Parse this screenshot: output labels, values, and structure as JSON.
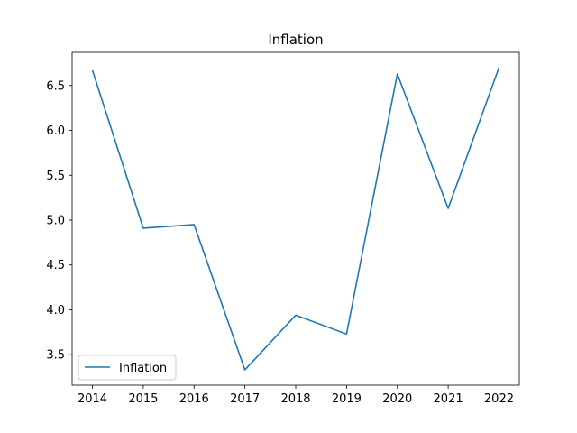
{
  "chart_data": {
    "type": "line",
    "title": "Inflation",
    "xlabel": "",
    "ylabel": "",
    "x": [
      2014,
      2015,
      2016,
      2017,
      2018,
      2019,
      2020,
      2021,
      2022
    ],
    "series": [
      {
        "name": "Inflation",
        "color": "#1f77b4",
        "values": [
          6.67,
          4.91,
          4.95,
          3.33,
          3.94,
          3.73,
          6.63,
          5.13,
          6.7
        ]
      }
    ],
    "xticks": [
      "2014",
      "2015",
      "2016",
      "2017",
      "2018",
      "2019",
      "2020",
      "2021",
      "2022"
    ],
    "yticks": [
      "3.5",
      "4.0",
      "4.5",
      "5.0",
      "5.5",
      "6.0",
      "6.5"
    ],
    "xlim": [
      2013.6,
      2022.4
    ],
    "ylim": [
      3.16,
      6.87
    ],
    "grid": false,
    "legend_position": "lower-left"
  }
}
